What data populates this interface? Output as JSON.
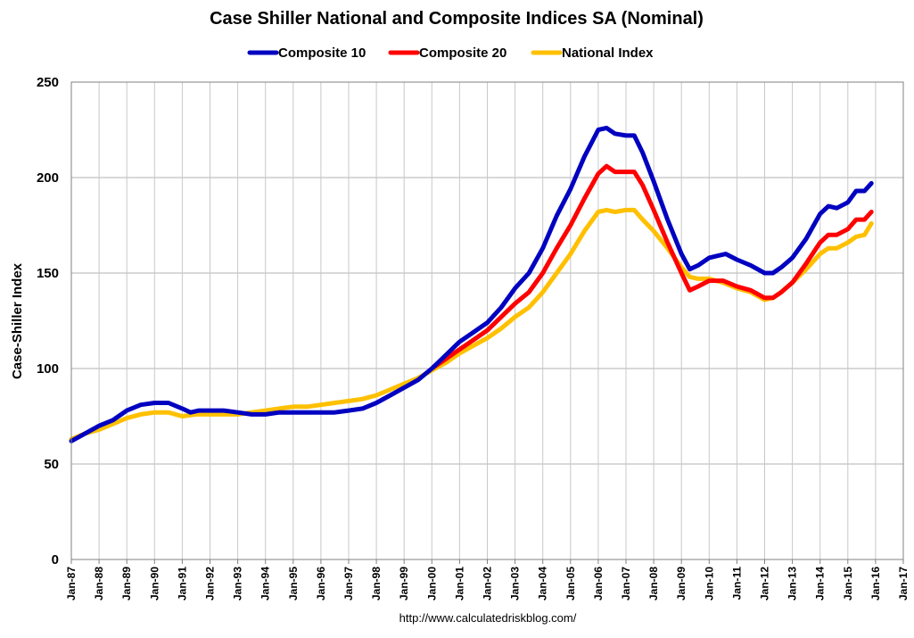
{
  "chart_data": {
    "type": "line",
    "title": "Case Shiller National and Composite Indices SA (Nominal)",
    "ylabel": "Case-Shiller Index",
    "xlabel": "",
    "source": "http://www.calculatedriskblog.com/",
    "ylim": [
      0,
      250
    ],
    "yticks": [
      0,
      50,
      100,
      150,
      200,
      250
    ],
    "xlim": [
      1987,
      2017
    ],
    "xticks": [
      {
        "value": 1987,
        "label": "Jan-87"
      },
      {
        "value": 1988,
        "label": "Jan-88"
      },
      {
        "value": 1989,
        "label": "Jan-89"
      },
      {
        "value": 1990,
        "label": "Jan-90"
      },
      {
        "value": 1991,
        "label": "Jan-91"
      },
      {
        "value": 1992,
        "label": "Jan-92"
      },
      {
        "value": 1993,
        "label": "Jan-93"
      },
      {
        "value": 1994,
        "label": "Jan-94"
      },
      {
        "value": 1995,
        "label": "Jan-95"
      },
      {
        "value": 1996,
        "label": "Jan-96"
      },
      {
        "value": 1997,
        "label": "Jan-97"
      },
      {
        "value": 1998,
        "label": "Jan-98"
      },
      {
        "value": 1999,
        "label": "Jan-99"
      },
      {
        "value": 2000,
        "label": "Jan-00"
      },
      {
        "value": 2001,
        "label": "Jan-01"
      },
      {
        "value": 2002,
        "label": "Jan-02"
      },
      {
        "value": 2003,
        "label": "Jan-03"
      },
      {
        "value": 2004,
        "label": "Jan-04"
      },
      {
        "value": 2005,
        "label": "Jan-05"
      },
      {
        "value": 2006,
        "label": "Jan-06"
      },
      {
        "value": 2007,
        "label": "Jan-07"
      },
      {
        "value": 2008,
        "label": "Jan-08"
      },
      {
        "value": 2009,
        "label": "Jan-09"
      },
      {
        "value": 2010,
        "label": "Jan-10"
      },
      {
        "value": 2011,
        "label": "Jan-11"
      },
      {
        "value": 2012,
        "label": "Jan-12"
      },
      {
        "value": 2013,
        "label": "Jan-13"
      },
      {
        "value": 2014,
        "label": "Jan-14"
      },
      {
        "value": 2015,
        "label": "Jan-15"
      },
      {
        "value": 2016,
        "label": "Jan-16"
      },
      {
        "value": 2017,
        "label": "Jan-17"
      }
    ],
    "grid": true,
    "legend": "top-center",
    "series": [
      {
        "name": "Composite 10",
        "color": "#0000c0",
        "points": [
          [
            1987.0,
            62
          ],
          [
            1987.5,
            66
          ],
          [
            1988.0,
            70
          ],
          [
            1988.5,
            73
          ],
          [
            1989.0,
            78
          ],
          [
            1989.5,
            81
          ],
          [
            1990.0,
            82
          ],
          [
            1990.5,
            82
          ],
          [
            1991.0,
            79
          ],
          [
            1991.3,
            77
          ],
          [
            1991.6,
            78
          ],
          [
            1992.0,
            78
          ],
          [
            1992.5,
            78
          ],
          [
            1993.0,
            77
          ],
          [
            1993.5,
            76
          ],
          [
            1994.0,
            76
          ],
          [
            1994.5,
            77
          ],
          [
            1995.0,
            77
          ],
          [
            1995.5,
            77
          ],
          [
            1996.0,
            77
          ],
          [
            1996.5,
            77
          ],
          [
            1997.0,
            78
          ],
          [
            1997.5,
            79
          ],
          [
            1998.0,
            82
          ],
          [
            1998.5,
            86
          ],
          [
            1999.0,
            90
          ],
          [
            1999.5,
            94
          ],
          [
            2000.0,
            100
          ],
          [
            2000.5,
            107
          ],
          [
            2001.0,
            114
          ],
          [
            2001.5,
            119
          ],
          [
            2002.0,
            124
          ],
          [
            2002.5,
            132
          ],
          [
            2003.0,
            142
          ],
          [
            2003.5,
            150
          ],
          [
            2004.0,
            163
          ],
          [
            2004.5,
            180
          ],
          [
            2005.0,
            194
          ],
          [
            2005.5,
            211
          ],
          [
            2006.0,
            225
          ],
          [
            2006.3,
            226
          ],
          [
            2006.6,
            223
          ],
          [
            2007.0,
            222
          ],
          [
            2007.3,
            222
          ],
          [
            2007.6,
            213
          ],
          [
            2008.0,
            198
          ],
          [
            2008.5,
            178
          ],
          [
            2009.0,
            160
          ],
          [
            2009.3,
            152
          ],
          [
            2009.6,
            154
          ],
          [
            2010.0,
            158
          ],
          [
            2010.3,
            159
          ],
          [
            2010.6,
            160
          ],
          [
            2011.0,
            157
          ],
          [
            2011.5,
            154
          ],
          [
            2012.0,
            150
          ],
          [
            2012.3,
            150
          ],
          [
            2012.6,
            153
          ],
          [
            2013.0,
            158
          ],
          [
            2013.5,
            168
          ],
          [
            2014.0,
            181
          ],
          [
            2014.3,
            185
          ],
          [
            2014.6,
            184
          ],
          [
            2015.0,
            187
          ],
          [
            2015.3,
            193
          ],
          [
            2015.6,
            193
          ],
          [
            2015.85,
            197
          ]
        ]
      },
      {
        "name": "Composite 20",
        "color": "#ff0000",
        "points": [
          [
            2000.0,
            100
          ],
          [
            2000.5,
            105
          ],
          [
            2001.0,
            110
          ],
          [
            2001.5,
            115
          ],
          [
            2002.0,
            120
          ],
          [
            2002.5,
            127
          ],
          [
            2003.0,
            134
          ],
          [
            2003.5,
            140
          ],
          [
            2004.0,
            150
          ],
          [
            2004.5,
            163
          ],
          [
            2005.0,
            175
          ],
          [
            2005.5,
            189
          ],
          [
            2006.0,
            202
          ],
          [
            2006.3,
            206
          ],
          [
            2006.6,
            203
          ],
          [
            2007.0,
            203
          ],
          [
            2007.3,
            203
          ],
          [
            2007.6,
            196
          ],
          [
            2008.0,
            183
          ],
          [
            2008.5,
            166
          ],
          [
            2009.0,
            150
          ],
          [
            2009.3,
            141
          ],
          [
            2009.6,
            143
          ],
          [
            2010.0,
            146
          ],
          [
            2010.5,
            146
          ],
          [
            2011.0,
            143
          ],
          [
            2011.5,
            141
          ],
          [
            2012.0,
            137
          ],
          [
            2012.3,
            137
          ],
          [
            2012.6,
            140
          ],
          [
            2013.0,
            145
          ],
          [
            2013.5,
            155
          ],
          [
            2014.0,
            166
          ],
          [
            2014.3,
            170
          ],
          [
            2014.6,
            170
          ],
          [
            2015.0,
            173
          ],
          [
            2015.3,
            178
          ],
          [
            2015.6,
            178
          ],
          [
            2015.85,
            182
          ]
        ]
      },
      {
        "name": "National Index",
        "color": "#ffc000",
        "points": [
          [
            1987.0,
            63
          ],
          [
            1987.5,
            66
          ],
          [
            1988.0,
            68
          ],
          [
            1988.5,
            71
          ],
          [
            1989.0,
            74
          ],
          [
            1989.5,
            76
          ],
          [
            1990.0,
            77
          ],
          [
            1990.5,
            77
          ],
          [
            1991.0,
            75
          ],
          [
            1991.5,
            76
          ],
          [
            1992.0,
            76
          ],
          [
            1992.5,
            76
          ],
          [
            1993.0,
            76
          ],
          [
            1993.5,
            77
          ],
          [
            1994.0,
            78
          ],
          [
            1994.5,
            79
          ],
          [
            1995.0,
            80
          ],
          [
            1995.5,
            80
          ],
          [
            1996.0,
            81
          ],
          [
            1996.5,
            82
          ],
          [
            1997.0,
            83
          ],
          [
            1997.5,
            84
          ],
          [
            1998.0,
            86
          ],
          [
            1998.5,
            89
          ],
          [
            1999.0,
            92
          ],
          [
            1999.5,
            95
          ],
          [
            2000.0,
            99
          ],
          [
            2000.5,
            103
          ],
          [
            2001.0,
            108
          ],
          [
            2001.5,
            112
          ],
          [
            2002.0,
            116
          ],
          [
            2002.5,
            121
          ],
          [
            2003.0,
            127
          ],
          [
            2003.5,
            132
          ],
          [
            2004.0,
            140
          ],
          [
            2004.5,
            150
          ],
          [
            2005.0,
            160
          ],
          [
            2005.5,
            172
          ],
          [
            2006.0,
            182
          ],
          [
            2006.3,
            183
          ],
          [
            2006.6,
            182
          ],
          [
            2007.0,
            183
          ],
          [
            2007.3,
            183
          ],
          [
            2007.6,
            178
          ],
          [
            2008.0,
            172
          ],
          [
            2008.5,
            163
          ],
          [
            2009.0,
            153
          ],
          [
            2009.3,
            148
          ],
          [
            2009.6,
            147
          ],
          [
            2010.0,
            147
          ],
          [
            2010.5,
            145
          ],
          [
            2011.0,
            142
          ],
          [
            2011.5,
            140
          ],
          [
            2012.0,
            136
          ],
          [
            2012.3,
            137
          ],
          [
            2012.6,
            140
          ],
          [
            2013.0,
            145
          ],
          [
            2013.5,
            152
          ],
          [
            2014.0,
            160
          ],
          [
            2014.3,
            163
          ],
          [
            2014.6,
            163
          ],
          [
            2015.0,
            166
          ],
          [
            2015.3,
            169
          ],
          [
            2015.6,
            170
          ],
          [
            2015.85,
            176
          ]
        ]
      }
    ]
  }
}
